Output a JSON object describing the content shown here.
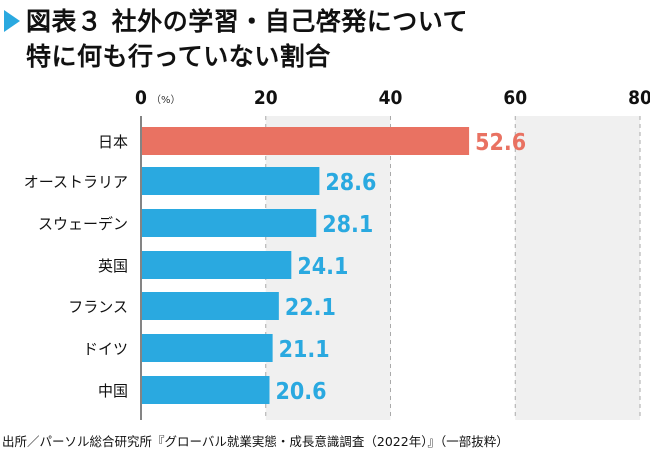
{
  "title_line1": "図表３ 社外の学習・自己啓発について",
  "title_line2": "特に何も行っていない割合",
  "icon": "triangle-marker-icon",
  "source": "出所／パーソル総合研究所『グローバル就業実態・成長意識調査（2022年）』（一部抜粋）",
  "colors": {
    "highlight": "#e97262",
    "bar": "#2aa9e0",
    "band": "#f0f0f0"
  },
  "chart_data": {
    "type": "bar",
    "orientation": "horizontal",
    "unit_label": "（%）",
    "categories": [
      "日本",
      "オーストラリア",
      "スウェーデン",
      "英国",
      "フランス",
      "ドイツ",
      "中国"
    ],
    "values": [
      52.6,
      28.6,
      28.1,
      24.1,
      22.1,
      21.1,
      20.6
    ],
    "value_labels": [
      "52.6",
      "28.6",
      "28.1",
      "24.1",
      "22.1",
      "21.1",
      "20.6"
    ],
    "xlim": [
      0,
      80
    ],
    "ticks": [
      "0",
      "20",
      "40",
      "60",
      "80"
    ],
    "highlight_category": "日本",
    "grid": "dashed vertical with alternating shaded bands"
  }
}
